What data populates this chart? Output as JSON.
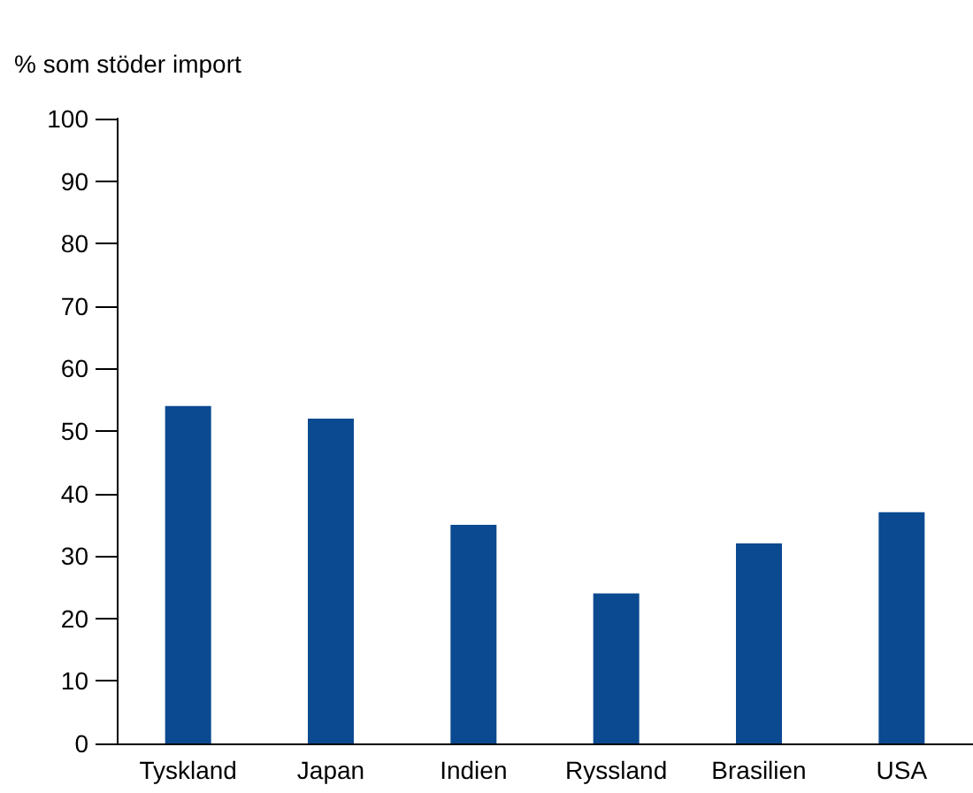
{
  "chart_data": {
    "type": "bar",
    "ylabel": "% som stöder import",
    "categories": [
      "Tyskland",
      "Japan",
      "Indien",
      "Ryssland",
      "Brasilien",
      "USA"
    ],
    "values": [
      54,
      52,
      35,
      24,
      32,
      37
    ],
    "color": "#0b4a91",
    "ylim": [
      0,
      100
    ],
    "yticks": [
      0,
      10,
      20,
      30,
      40,
      50,
      60,
      70,
      80,
      90,
      100
    ],
    "grid": false
  }
}
